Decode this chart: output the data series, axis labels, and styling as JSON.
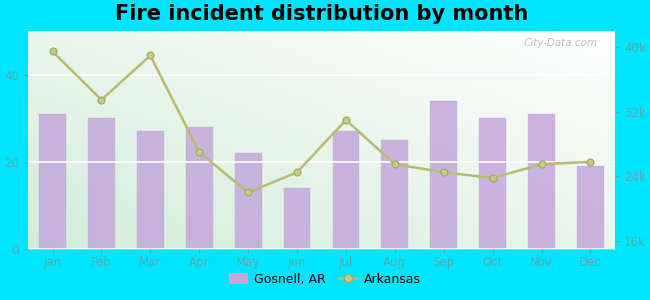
{
  "title": "Fire incident distribution by month",
  "months": [
    "Jan",
    "Feb",
    "Mar",
    "Apr",
    "May",
    "Jun",
    "Jul",
    "Aug",
    "Sep",
    "Oct",
    "Nov",
    "Dec"
  ],
  "gosnell_values": [
    31,
    30,
    27,
    28,
    22,
    14,
    27,
    25,
    34,
    30,
    31,
    19
  ],
  "arkansas_values": [
    39500,
    33500,
    39000,
    27000,
    22000,
    24500,
    31000,
    25500,
    24500,
    23800,
    25500,
    25800
  ],
  "bar_color": "#c4a8dc",
  "bar_edgecolor": "#c4a8dc",
  "line_color": "#b8bc70",
  "line_marker": "o",
  "line_marker_facecolor": "#c8cc80",
  "line_marker_edgecolor": "#a0a860",
  "background_outer": "#00e5ff",
  "left_ylim": [
    0,
    50
  ],
  "left_yticks": [
    0,
    20,
    40
  ],
  "right_ylim": [
    15000,
    42000
  ],
  "right_yticks": [
    16000,
    24000,
    32000,
    40000
  ],
  "right_yticklabels": [
    "16k",
    "24k",
    "32k",
    "40k"
  ],
  "legend_gosnell": "Gosnell, AR",
  "legend_arkansas": "Arkansas",
  "watermark": "City-Data.com",
  "title_fontsize": 15,
  "tick_color": "#55aaaa",
  "tick_fontsize": 8.5
}
